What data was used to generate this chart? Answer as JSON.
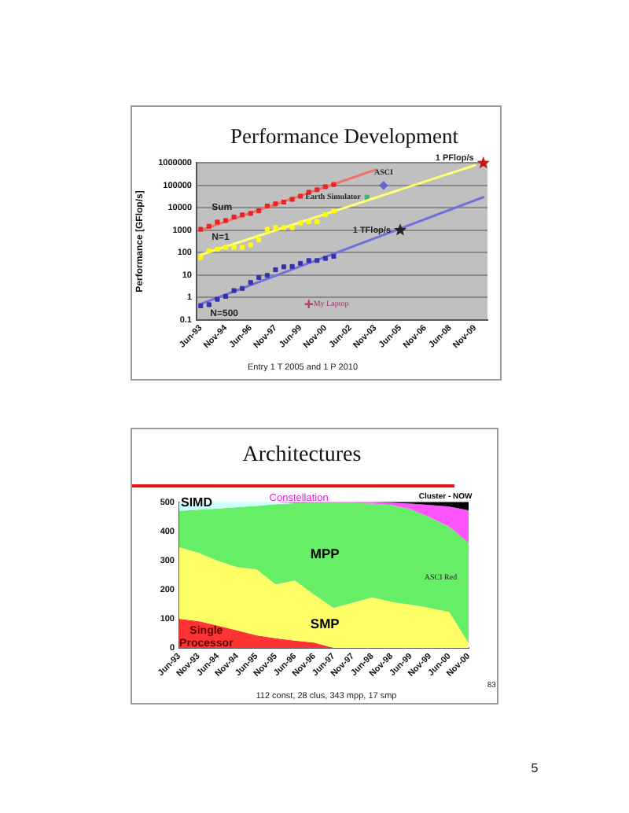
{
  "chart_data": [
    {
      "type": "scatter",
      "title": "Performance Development",
      "ylabel": "Performance [GFlop/s]",
      "log": true,
      "ylim": [
        0.1,
        1000000
      ],
      "yticks": [
        0.1,
        1,
        10,
        100,
        1000,
        10000,
        100000,
        1000000
      ],
      "grid": "y",
      "legend": false,
      "categories": [
        "Jun-93",
        null,
        null,
        "Nov-94",
        null,
        null,
        "Jun-96",
        null,
        null,
        "Nov-97",
        null,
        null,
        "Jun-99",
        null,
        null,
        "Nov-00",
        null,
        null,
        "Jun-02",
        null,
        null,
        "Nov-03",
        null,
        null,
        "Jun-05",
        null,
        null,
        "Nov-06",
        null,
        null,
        "Jun-08",
        null,
        null,
        "Nov-09",
        null
      ],
      "series": [
        {
          "name": "Sum",
          "marker": "square",
          "color": "#ee2222",
          "values": [
            1100,
            1500,
            2300,
            2700,
            3900,
            4800,
            5600,
            7400,
            12000,
            15000,
            18000,
            24000,
            33000,
            50000,
            64000,
            88000,
            110000,
            null,
            null,
            null,
            null,
            null,
            null,
            null,
            null,
            null,
            null,
            null,
            null,
            null,
            null,
            null,
            null,
            null,
            null
          ]
        },
        {
          "name": "N=1",
          "marker": "square",
          "color": "#ffff00",
          "values": [
            60,
            120,
            140,
            170,
            170,
            170,
            220,
            370,
            1100,
            1300,
            1300,
            1300,
            2100,
            2400,
            2400,
            4900,
            7200,
            null,
            null,
            null,
            null,
            null,
            null,
            null,
            null,
            null,
            null,
            null,
            null,
            null,
            null,
            null,
            null,
            null,
            null
          ]
        },
        {
          "name": "N=500",
          "marker": "square",
          "color": "#3333aa",
          "values": [
            0.42,
            0.47,
            0.82,
            1.1,
            2,
            2.5,
            4.6,
            7.7,
            9.5,
            17,
            23,
            24,
            33,
            44,
            44,
            55,
            68,
            null,
            null,
            null,
            null,
            null,
            null,
            null,
            null,
            null,
            null,
            null,
            null,
            null,
            null,
            null,
            null,
            null,
            null
          ]
        },
        {
          "type": "line",
          "marker": "none",
          "color": "#f07070",
          "values": [
            1000,
            null,
            null,
            null,
            null,
            null,
            null,
            null,
            null,
            null,
            null,
            null,
            null,
            null,
            null,
            null,
            null,
            null,
            null,
            null,
            null,
            500000,
            null,
            null,
            null,
            null,
            null,
            null,
            null,
            null,
            null,
            null,
            null,
            null,
            null
          ]
        },
        {
          "type": "line",
          "marker": "none",
          "color": "#ffff70",
          "values": [
            80,
            null,
            null,
            null,
            null,
            null,
            null,
            null,
            null,
            null,
            null,
            null,
            null,
            null,
            null,
            null,
            null,
            null,
            null,
            null,
            null,
            null,
            null,
            null,
            null,
            null,
            null,
            null,
            null,
            null,
            null,
            null,
            null,
            800000,
            null
          ]
        },
        {
          "type": "line",
          "marker": "none",
          "color": "#7070dd",
          "values": [
            0.5,
            null,
            null,
            null,
            null,
            null,
            null,
            null,
            null,
            null,
            null,
            null,
            null,
            null,
            null,
            null,
            null,
            null,
            null,
            null,
            null,
            null,
            null,
            null,
            null,
            null,
            null,
            null,
            null,
            null,
            null,
            null,
            null,
            null,
            30000
          ]
        },
        {
          "name": "ASCI",
          "marker": "diamond",
          "color": "#6666cc",
          "values": [
            null,
            null,
            null,
            null,
            null,
            null,
            null,
            null,
            null,
            null,
            null,
            null,
            null,
            null,
            null,
            null,
            null,
            null,
            null,
            null,
            null,
            null,
            100000,
            null,
            null,
            null,
            null,
            null,
            null,
            null,
            null,
            null,
            null,
            null,
            null
          ]
        },
        {
          "name": "Earth Simulator",
          "marker": "square",
          "color": "#33bb66",
          "values": [
            null,
            null,
            null,
            null,
            null,
            null,
            null,
            null,
            null,
            null,
            null,
            null,
            null,
            null,
            null,
            null,
            null,
            null,
            null,
            null,
            30000,
            null,
            null,
            null,
            null,
            null,
            null,
            null,
            null,
            null,
            null,
            null,
            null,
            null,
            null
          ]
        },
        {
          "name": "1 TFlop/s",
          "marker": "star",
          "color": "#222222",
          "values": [
            null,
            null,
            null,
            null,
            null,
            null,
            null,
            null,
            null,
            null,
            null,
            null,
            null,
            null,
            null,
            null,
            null,
            null,
            null,
            null,
            null,
            null,
            null,
            null,
            1000,
            null,
            null,
            null,
            null,
            null,
            null,
            null,
            null,
            null,
            null
          ]
        },
        {
          "name": "1 PFlop/s",
          "marker": "star",
          "color": "#cc1111",
          "values": [
            null,
            null,
            null,
            null,
            null,
            null,
            null,
            null,
            null,
            null,
            null,
            null,
            null,
            null,
            null,
            null,
            null,
            null,
            null,
            null,
            null,
            null,
            null,
            null,
            null,
            null,
            null,
            null,
            null,
            null,
            null,
            null,
            null,
            null,
            1000000
          ]
        },
        {
          "name": "My Laptop",
          "marker": "cross",
          "color": "#cc3377",
          "values": [
            null,
            null,
            null,
            null,
            null,
            null,
            null,
            null,
            null,
            null,
            null,
            null,
            null,
            0.5,
            null,
            null,
            null,
            null,
            null,
            null,
            null,
            null,
            null,
            null,
            null,
            null,
            null,
            null,
            null,
            null,
            null,
            null,
            null,
            null,
            null
          ]
        }
      ],
      "annotations": [
        "Entry 1 T 2005 and 1 P 2010"
      ]
    },
    {
      "type": "area",
      "stacked": true,
      "title": "Architectures",
      "ylim": [
        0,
        500
      ],
      "yticks": [
        0,
        100,
        200,
        300,
        400,
        500
      ],
      "grid": false,
      "legend": false,
      "categories": [
        "Jun-93",
        "Nov-93",
        "Jun-94",
        "Nov-94",
        "Jun-95",
        "Nov-95",
        "Jun-96",
        "Nov-96",
        "Jun-97",
        "Nov-97",
        "Jun-98",
        "Nov-98",
        "Jun-99",
        "Nov-99",
        "Jun-00",
        "Nov-00"
      ],
      "series": [
        {
          "name": "Single Processor",
          "color": "#ff3333",
          "values": [
            100,
            92,
            76,
            60,
            43,
            33,
            25,
            18,
            0,
            null,
            null,
            null,
            null,
            null,
            null,
            null
          ]
        },
        {
          "name": "SMP",
          "color": "#ffff66",
          "values": [
            245,
            234,
            223,
            217,
            227,
            185,
            206,
            164,
            137,
            155,
            173,
            158,
            148,
            137,
            123,
            17
          ]
        },
        {
          "name": "MPP",
          "color": "#66ee66",
          "values": [
            125,
            148,
            179,
            206,
            217,
            275,
            265,
            315,
            360,
            342,
            322,
            332,
            327,
            311,
            292,
            343
          ]
        },
        {
          "name": "SIMD",
          "color": "#ccffff",
          "values": [
            30,
            26,
            22,
            17,
            13,
            7,
            0,
            null,
            null,
            null,
            null,
            null,
            null,
            null,
            null,
            null
          ]
        },
        {
          "name": "Constellation",
          "color": "#ff55ff",
          "values": [
            null,
            null,
            null,
            null,
            null,
            0,
            4,
            3,
            3,
            3,
            5,
            8,
            20,
            42,
            70,
            112
          ]
        },
        {
          "name": "Cluster - NOW",
          "color": "#000000",
          "values": [
            null,
            null,
            null,
            null,
            null,
            null,
            null,
            null,
            null,
            null,
            0,
            2,
            5,
            10,
            15,
            28
          ]
        }
      ],
      "annotations": [
        "ASCI Red",
        "112 const, 28 clus, 343 mpp, 17 smp",
        "83",
        "5"
      ]
    }
  ]
}
